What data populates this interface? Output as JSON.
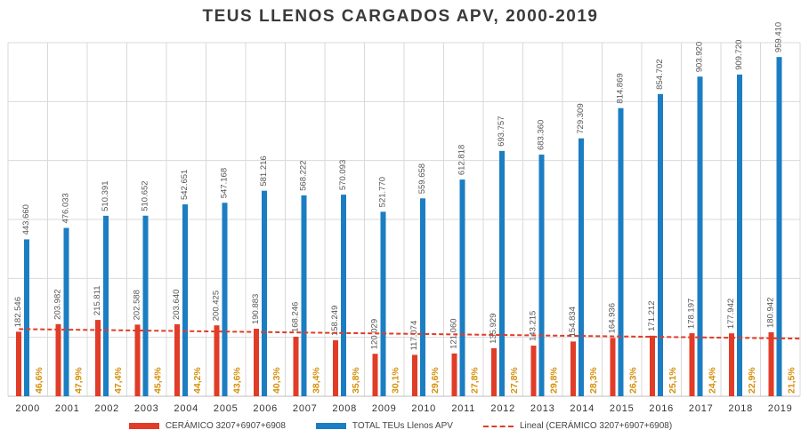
{
  "chart_data": {
    "type": "bar",
    "title": "TEUS LLENOS CARGADOS APV, 2000-2019",
    "xlabel": "",
    "ylabel": "",
    "ylim": [
      0,
      1000000
    ],
    "grid": true,
    "categories": [
      "2000",
      "2001",
      "2002",
      "2003",
      "2004",
      "2005",
      "2006",
      "2007",
      "2008",
      "2009",
      "2010",
      "2011",
      "2012",
      "2013",
      "2014",
      "2015",
      "2016",
      "2017",
      "2018",
      "2019"
    ],
    "series": [
      {
        "name": "CERÁMICO 3207+6907+6908",
        "color": "#e03c28",
        "values": [
          182546,
          203982,
          215811,
          202588,
          203640,
          200425,
          190883,
          168246,
          158249,
          120029,
          117074,
          121060,
          135929,
          143215,
          154834,
          164936,
          171212,
          178197,
          177942,
          180942
        ],
        "labels": [
          "182.546",
          "203.982",
          "215.811",
          "202.588",
          "203.640",
          "200.425",
          "190.883",
          "168.246",
          "158.249",
          "120.029",
          "117.074",
          "121.060",
          "135.929",
          "143.215",
          "154.834",
          "164.936",
          "171.212",
          "178.197",
          "177.942",
          "180.942"
        ]
      },
      {
        "name": "TOTAL TEUs Llenos APV",
        "color": "#1b7ec2",
        "values": [
          443660,
          476033,
          510391,
          510652,
          542651,
          547168,
          581216,
          568222,
          570093,
          521770,
          559658,
          612818,
          693757,
          683360,
          729309,
          814869,
          854702,
          903920,
          909720,
          959410
        ],
        "labels": [
          "443.660",
          "476.033",
          "510.391",
          "510.652",
          "542.651",
          "547.168",
          "581.216",
          "568.222",
          "570.093",
          "521.770",
          "559.658",
          "612.818",
          "693.757",
          "683.360",
          "729.309",
          "814.869",
          "854.702",
          "903.920",
          "909.720",
          "959.410"
        ]
      }
    ],
    "percentages": [
      "46,6%",
      "47,9%",
      "47,4%",
      "45,4%",
      "44,2%",
      "43,6%",
      "40,3%",
      "38,4%",
      "35,8%",
      "30,1%",
      "29,6%",
      "27,8%",
      "27,8%",
      "29,8%",
      "28,3%",
      "26,3%",
      "25,1%",
      "24,4%",
      "22,9%",
      "21,5%"
    ],
    "trendline": {
      "name": "Lineal (CERÁMICO 3207+6907+6908)",
      "color": "#e03c28",
      "start": 190000,
      "end": 163000
    }
  },
  "legend": {
    "ceramico": "CERÁMICO 3207+6907+6908",
    "total": "TOTAL TEUs Llenos APV",
    "lineal": "Lineal (CERÁMICO 3207+6907+6908)"
  }
}
